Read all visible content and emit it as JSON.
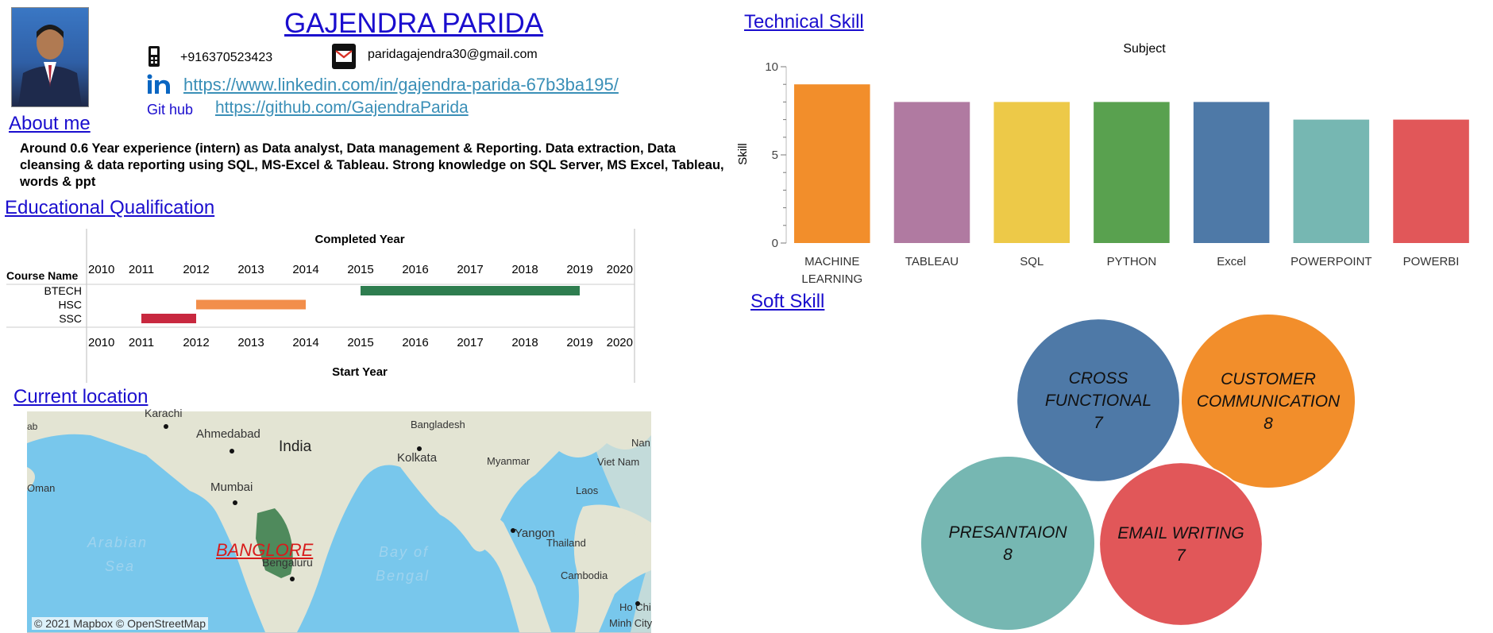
{
  "profile": {
    "name": "GAJENDRA PARIDA",
    "phone": "+916370523423",
    "email": "paridagajendra30@gmail.com",
    "linkedin": "https://www.linkedin.com/in/gajendra-parida-67b3ba195/",
    "github_label": "Git hub",
    "github": "https://github.com/GajendraParida"
  },
  "about": {
    "heading": "About me",
    "text": "Around 0.6 Year experience (intern) as Data analyst, Data management & Reporting. Data extraction, Data cleansing & data reporting using SQL, MS-Excel & Tableau. Strong knowledge on SQL Server, MS Excel, Tableau, words & ppt"
  },
  "education": {
    "heading": "Educational Qualification",
    "top_title": "Completed Year",
    "bottom_title": "Start Year",
    "row_header": "Course Name",
    "years": [
      "2010",
      "2011",
      "2012",
      "2013",
      "2014",
      "2015",
      "2016",
      "2017",
      "2018",
      "2019",
      "2020"
    ]
  },
  "location": {
    "heading": "Current location",
    "city_label": "BANGLORE",
    "attribution": "© 2021 Mapbox © OpenStreetMap",
    "places": [
      "Karachi",
      "Ahmedabad",
      "India",
      "Bangladesh",
      "Kolkata",
      "Myanmar",
      "Viet Nam",
      "Laos",
      "Mumbai",
      "Oman",
      "Arabian",
      "Sea",
      "Bay of",
      "Bengal",
      "Yangon",
      "Thailand",
      "Bengaluru",
      "Cambodia",
      "Ho Chi",
      "Minh City",
      "ab",
      "Nan"
    ]
  },
  "technical": {
    "heading": "Technical Skill",
    "chart_title": "Subject",
    "ylabel": "Skill"
  },
  "soft": {
    "heading": "Soft Skill",
    "bubbles": [
      {
        "name": "CROSS FUNCTIONAL",
        "line1": "CROSS",
        "line2": "FUNCTIONAL",
        "value": 7,
        "color": "#4e79a7"
      },
      {
        "name": "CUSTOMER COMMUNICATION",
        "line1": "CUSTOMER",
        "line2": "COMMUNICATION",
        "value": 8,
        "color": "#f28e2b"
      },
      {
        "name": "PRESANTAION",
        "line1": "PRESANTAION",
        "line2": "",
        "value": 8,
        "color": "#76b7b2"
      },
      {
        "name": "EMAIL WRITING",
        "line1": "EMAIL WRITING",
        "line2": "",
        "value": 7,
        "color": "#e15759"
      }
    ]
  },
  "chart_data": [
    {
      "type": "bar",
      "title": "Subject",
      "xlabel": "",
      "ylabel": "Skill",
      "ylim": [
        0,
        10
      ],
      "yticks": [
        0,
        5,
        10
      ],
      "grid": false,
      "categories": [
        "MACHINE LEARNING",
        "TABLEAU",
        "SQL",
        "PYTHON",
        "Excel",
        "POWERPOINT",
        "POWERBI"
      ],
      "values": [
        9,
        8,
        8,
        8,
        8,
        7,
        7
      ],
      "colors": [
        "#f28e2b",
        "#b07aa1",
        "#edc948",
        "#59a14f",
        "#4e79a7",
        "#76b7b2",
        "#e15759"
      ]
    },
    {
      "type": "bar",
      "subtype": "gantt",
      "title": "Completed Year",
      "xlabel": "Start Year",
      "ylabel": "Course Name",
      "xlim": [
        2010,
        2020
      ],
      "categories": [
        "BTECH",
        "HSC",
        "SSC"
      ],
      "series": [
        {
          "category": "BTECH",
          "start": 2015,
          "end": 2019,
          "color": "#2e7d4f"
        },
        {
          "category": "HSC",
          "start": 2012,
          "end": 2014,
          "color": "#f28e4b"
        },
        {
          "category": "SSC",
          "start": 2011,
          "end": 2012,
          "color": "#c8283f"
        }
      ]
    },
    {
      "type": "bubble",
      "title": "",
      "categories": [
        "CROSS FUNCTIONAL",
        "CUSTOMER COMMUNICATION",
        "PRESANTAION",
        "EMAIL WRITING"
      ],
      "values": [
        7,
        8,
        8,
        7
      ]
    }
  ]
}
